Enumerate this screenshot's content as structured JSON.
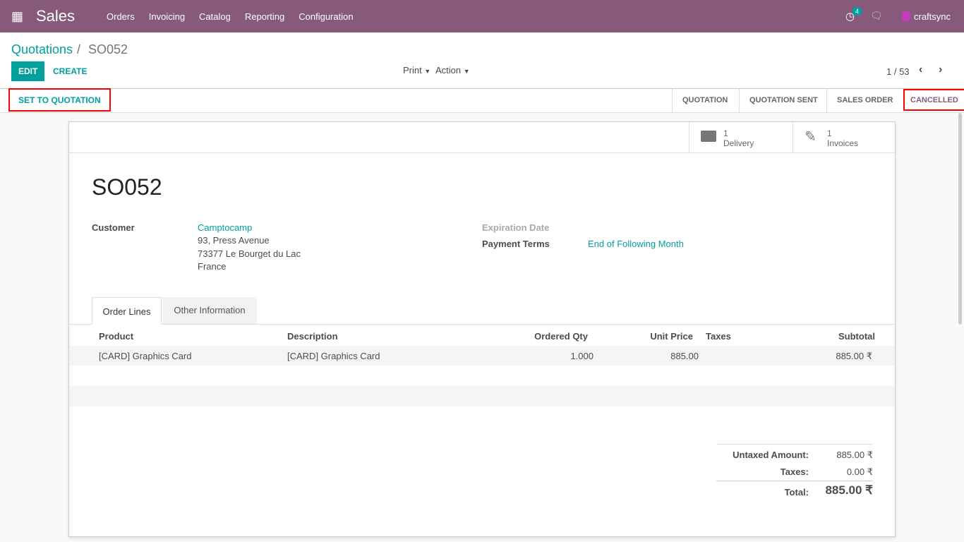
{
  "nav": {
    "app": "Sales",
    "menu": [
      "Orders",
      "Invoicing",
      "Catalog",
      "Reporting",
      "Configuration"
    ],
    "activity_count": "4",
    "user": "craftsync"
  },
  "breadcrumb": {
    "parent": "Quotations",
    "current": "SO052"
  },
  "toolbar": {
    "edit": "EDIT",
    "create": "CREATE",
    "print": "Print",
    "action": "Action",
    "pager": "1 / 53"
  },
  "statusbar": {
    "set_to_quotation": "SET TO QUOTATION",
    "stages": [
      "QUOTATION",
      "QUOTATION SENT",
      "SALES ORDER",
      "CANCELLED"
    ],
    "active": "CANCELLED"
  },
  "smart_buttons": [
    {
      "count": "1",
      "label": "Delivery",
      "icon": "truck-icon"
    },
    {
      "count": "1",
      "label": "Invoices",
      "icon": "edit-icon"
    }
  ],
  "form": {
    "name": "SO052",
    "customer_label": "Customer",
    "customer": "Camptocamp",
    "address": [
      "93, Press Avenue",
      "73377 Le Bourget du Lac",
      "France"
    ],
    "expiration_label": "Expiration Date",
    "payment_terms_label": "Payment Terms",
    "payment_terms": "End of Following Month"
  },
  "tabs": [
    "Order Lines",
    "Other Information"
  ],
  "lines": {
    "headers": [
      "Product",
      "Description",
      "Ordered Qty",
      "Unit Price",
      "Taxes",
      "Subtotal"
    ],
    "rows": [
      [
        "[CARD] Graphics Card",
        "[CARD] Graphics Card",
        "1.000",
        "885.00",
        "",
        "885.00 ₹"
      ]
    ]
  },
  "totals": {
    "untaxed_label": "Untaxed Amount:",
    "untaxed": "885.00 ₹",
    "taxes_label": "Taxes:",
    "taxes": "0.00 ₹",
    "total_label": "Total:",
    "total": "885.00 ₹"
  },
  "colors": {
    "brand": "#875A7B",
    "accent": "#00A09D",
    "highlight": "#FF0000"
  }
}
